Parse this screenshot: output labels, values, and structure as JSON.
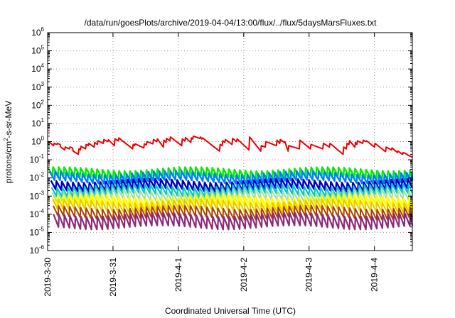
{
  "chart_data": {
    "type": "line",
    "title": "/data/run/goesPlots/archive/2019-04-04/13:00/flux/../flux/5daysMarsFluxes.txt",
    "xlabel": "Coordinated Universal Time (UTC)",
    "ylabel_parts": [
      "protons/cm",
      "2",
      "-s-sr-MeV"
    ],
    "yscale": "log",
    "ylim_exponents": [
      -6,
      6
    ],
    "y_tick_labels": [
      {
        "base": "10",
        "exp": "6"
      },
      {
        "base": "10",
        "exp": "5"
      },
      {
        "base": "10",
        "exp": "4"
      },
      {
        "base": "10",
        "exp": "3"
      },
      {
        "base": "10",
        "exp": "2"
      },
      {
        "base": "10",
        "exp": "1"
      },
      {
        "base": "10",
        "exp": "0"
      },
      {
        "base": "10",
        "exp": "-1"
      },
      {
        "base": "10",
        "exp": "-2"
      },
      {
        "base": "10",
        "exp": "-3"
      },
      {
        "base": "10",
        "exp": "-4"
      },
      {
        "base": "10",
        "exp": "-5"
      },
      {
        "base": "10",
        "exp": "-6"
      }
    ],
    "x_ticks": [
      "2019-3-30",
      "2019-3-31",
      "2019-4-1",
      "2019-4-2",
      "2019-4-3",
      "2019-4-4"
    ],
    "xlim_days": [
      0,
      5.58
    ],
    "grid": true,
    "series": [
      {
        "color": "#ee0000",
        "x": [
          0.0,
          0.02,
          0.09,
          0.1,
          0.14,
          0.15,
          0.19,
          0.2,
          0.26,
          0.27,
          0.33,
          0.34,
          0.38,
          0.39,
          0.47,
          0.48,
          0.5,
          0.51,
          0.58,
          0.59,
          0.62,
          0.63,
          0.71,
          0.72,
          0.76,
          0.77,
          0.85,
          0.86,
          0.92,
          0.93,
          1.02,
          1.03,
          1.08,
          1.09,
          1.3,
          1.31,
          1.33,
          1.34,
          1.47,
          1.48,
          1.51,
          1.52,
          1.61,
          1.62,
          1.67,
          1.68,
          1.77,
          1.78,
          1.81,
          1.82,
          1.87,
          1.88,
          2.05,
          2.06,
          2.1,
          2.11,
          2.19,
          2.2,
          2.22,
          2.23,
          2.33,
          2.34,
          2.36,
          2.37,
          2.63,
          2.64,
          2.67,
          2.68,
          2.71,
          2.72,
          2.82,
          2.83,
          2.89,
          2.9,
          3.08,
          3.09,
          3.26,
          3.27,
          3.33,
          3.34,
          3.5,
          3.51,
          3.55,
          3.56,
          3.62,
          3.63,
          3.68,
          3.69,
          3.85,
          3.86,
          4.02,
          4.03,
          4.21,
          4.22,
          4.31,
          4.32,
          4.52,
          4.53,
          4.57,
          4.58,
          4.61,
          4.62,
          4.7,
          4.71,
          4.73,
          4.74,
          4.82,
          4.83,
          4.87,
          4.88,
          5.0,
          5.01,
          5.17,
          5.18,
          5.26,
          5.27,
          5.35,
          5.36,
          5.43,
          5.44,
          5.5,
          5.51,
          5.58
        ],
        "values": [
          0.8,
          1,
          0.6,
          0.8,
          0.7,
          0.8,
          0.7,
          0.5,
          0.35,
          0.5,
          0.4,
          0.5,
          0.45,
          0.3,
          0.2,
          0.4,
          0.35,
          0.55,
          0.4,
          0.7,
          0.6,
          0.8,
          0.5,
          0.9,
          0.7,
          1.1,
          0.8,
          1.3,
          1.0,
          1.25,
          0.6,
          1.4,
          1.1,
          1.6,
          0.4,
          0.7,
          0.6,
          0.75,
          0.45,
          0.75,
          0.65,
          1.0,
          0.75,
          1.3,
          1.0,
          1.4,
          0.5,
          1.2,
          0.9,
          1.5,
          1.1,
          1.8,
          0.6,
          1.4,
          1.1,
          1.65,
          0.9,
          1.6,
          1.4,
          2.0,
          1.5,
          1.8,
          1.4,
          1.6,
          0.3,
          0.7,
          0.6,
          1.1,
          0.9,
          1.3,
          0.7,
          1.5,
          1.0,
          1.4,
          0.35,
          1.8,
          0.3,
          0.6,
          0.5,
          1.0,
          0.6,
          1.2,
          0.8,
          1.3,
          0.9,
          1.0,
          0.3,
          0.6,
          0.4,
          1.2,
          0.4,
          0.7,
          0.4,
          0.8,
          0.5,
          0.8,
          0.2,
          0.5,
          0.4,
          0.8,
          0.7,
          1.1,
          0.5,
          0.9,
          0.7,
          1.1,
          0.8,
          1.2,
          1.0,
          1.1,
          0.5,
          0.8,
          0.28,
          0.5,
          0.35,
          0.45,
          0.25,
          0.3,
          0.2,
          0.25,
          0.2,
          0.18,
          0.14
        ]
      },
      {
        "color": "#00ee00",
        "base": 0.0195,
        "amp": 0.012,
        "phase": 0.0,
        "width": 2.5
      },
      {
        "color": "#0080ff",
        "base": 0.0115,
        "amp": 0.0075,
        "phase": 0.03,
        "width": 2.5
      },
      {
        "color": "#0000c8",
        "base": 0.0042,
        "amp": 0.003,
        "phase": 0.05,
        "width": 2.5
      },
      {
        "color": "#00c8c8",
        "base": 0.0022,
        "amp": 0.0016,
        "phase": 0.06,
        "width": 2.2
      },
      {
        "color": "#a0e0a0",
        "base": 0.0011,
        "amp": 0.0009,
        "phase": 0.07,
        "width": 2.0
      },
      {
        "color": "#ffff00",
        "base": 0.00048,
        "amp": 0.00042,
        "phase": 0.075,
        "width": 3.0
      },
      {
        "color": "#e8c800",
        "base": 0.00028,
        "amp": 0.00026,
        "phase": 0.08,
        "width": 2.0
      },
      {
        "color": "#b04000",
        "base": 0.00012,
        "amp": 0.00012,
        "phase": 0.085,
        "width": 2.0
      },
      {
        "color": "#8b2a7a",
        "base": 3.5e-05,
        "amp": 6.2e-05,
        "phase": 0.09,
        "width": 2.2
      }
    ],
    "period_days": 0.084
  }
}
